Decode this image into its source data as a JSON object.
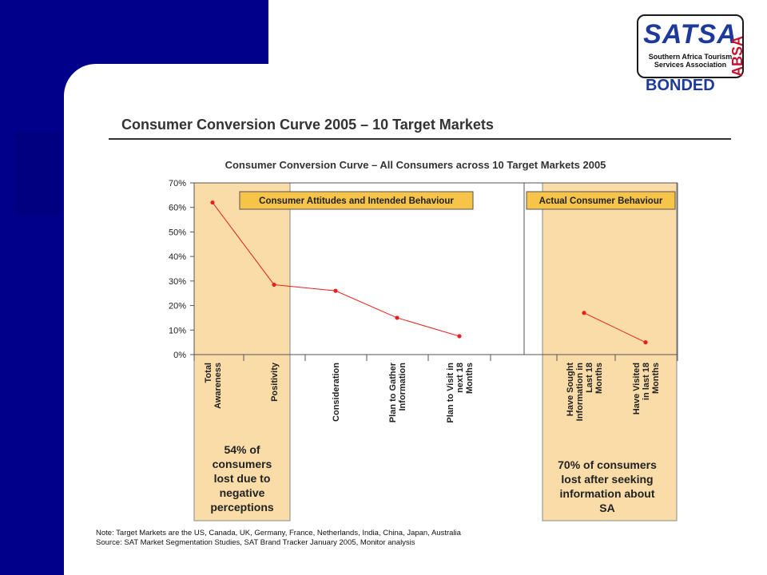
{
  "slide_title": "Consumer Conversion Curve 2005 – 10 Target Markets",
  "logo": {
    "wordmark": "SATSA",
    "subtitle_line1": "Southern Africa Tourism",
    "subtitle_line2": "Services Association",
    "bonded": "BONDED",
    "absa": "ABSA"
  },
  "chart_data": {
    "type": "line",
    "title": "Consumer Conversion Curve – All Consumers across 10 Target Markets 2005",
    "ylim": [
      0,
      70
    ],
    "yticks": [
      "0%",
      "10%",
      "20%",
      "30%",
      "40%",
      "50%",
      "60%",
      "70%"
    ],
    "series_color": "#e8201e",
    "highlight_color": "#f9dca7",
    "groups": [
      {
        "label": "Consumer Attitudes and Intended Behaviour",
        "categories": [
          "Total Awareness",
          "Positivity",
          "Consideration",
          "Plan to Gather Information",
          "Plan to Visit in next 18 Months"
        ],
        "values": [
          62,
          28.5,
          26,
          15,
          7.5
        ]
      },
      {
        "label": "Actual Consumer Behaviour",
        "categories": [
          "Have Sought Information in Last 18 Months",
          "Have Visited in last 18 Months"
        ],
        "values": [
          17,
          5
        ]
      }
    ],
    "annotations": [
      "54% of consumers lost due to negative perceptions",
      "70% of consumers lost after seeking information about SA"
    ]
  },
  "note": "Note: Target Markets are the US, Canada, UK, Germany, France, Netherlands, India, China, Japan, Australia",
  "source": "Source: SAT Market Segmentation Studies, SAT Brand Tracker January 2005, Monitor analysis"
}
